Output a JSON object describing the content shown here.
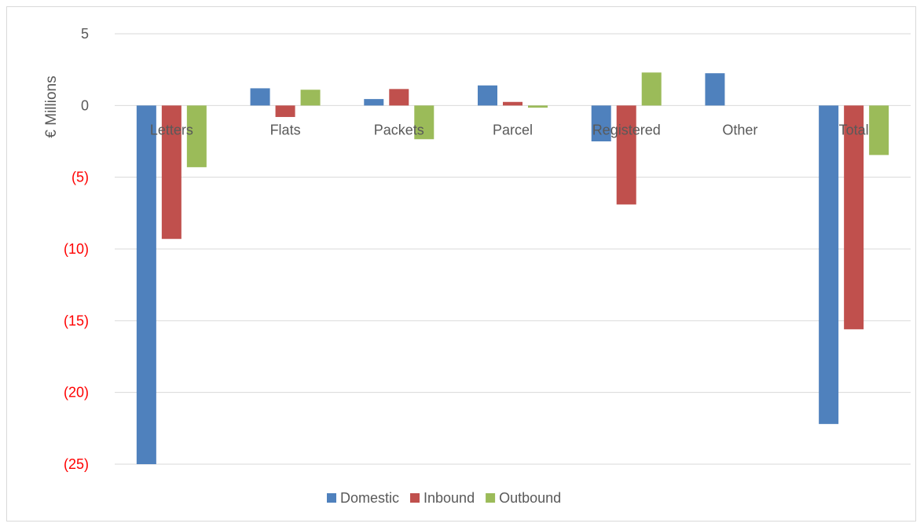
{
  "chart_data": {
    "type": "bar",
    "title": "",
    "xlabel": "",
    "ylabel": "€ Millions",
    "ylim": [
      -25,
      5
    ],
    "yticks": [
      5,
      0,
      -5,
      -10,
      -15,
      -20,
      -25
    ],
    "ytick_labels": [
      "5",
      "0",
      "(5)",
      "(10)",
      "(15)",
      "(20)",
      "(25)"
    ],
    "negative_tick_color": "#ff0000",
    "positive_tick_color": "#595959",
    "grid": true,
    "legend_position": "bottom",
    "categories": [
      "Letters",
      "Flats",
      "Packets",
      "Parcel",
      "Registered",
      "Other",
      "Total"
    ],
    "series": [
      {
        "name": "Domestic",
        "color": "#4f81bd",
        "values": [
          -25.0,
          1.2,
          0.45,
          1.4,
          -2.5,
          2.25,
          -22.2
        ]
      },
      {
        "name": "Inbound",
        "color": "#c0504d",
        "values": [
          -9.3,
          -0.8,
          1.15,
          0.25,
          -6.9,
          0,
          -15.6
        ]
      },
      {
        "name": "Outbound",
        "color": "#9bbb59",
        "values": [
          -4.3,
          1.1,
          -2.35,
          -0.15,
          2.3,
          0,
          -3.45
        ]
      }
    ]
  }
}
